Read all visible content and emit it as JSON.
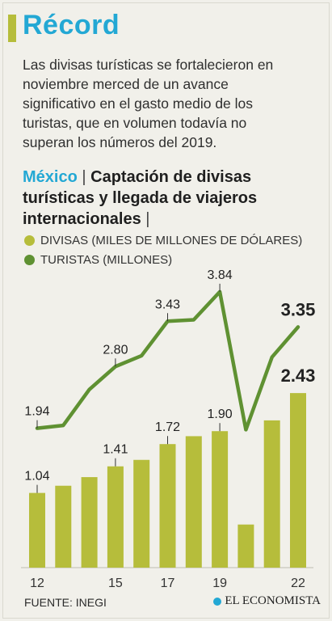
{
  "title": "Récord",
  "description": "Las divisas turísticas se fortalecieron en noviembre merced de un avance significativo en el gasto medio de los turistas, que en volumen todavía no superan los números del 2019.",
  "heading": {
    "country": "México",
    "separator": "|",
    "text": "Captación de divisas turísticas y llegada de viajeros internacionales",
    "trailing": "|"
  },
  "legend": [
    {
      "label": "DIVISAS (MILES DE MILLONES DE DÓLARES)",
      "color": "#b6bd3b"
    },
    {
      "label": "TURISTAS (MILLONES)",
      "color": "#5f9132"
    }
  ],
  "chart_data": {
    "type": "bar",
    "categories": [
      "12",
      "13",
      "14",
      "15",
      "16",
      "17",
      "18",
      "19",
      "20",
      "21",
      "22"
    ],
    "x_tick_labels": [
      "12",
      "15",
      "17",
      "19",
      "22"
    ],
    "series": [
      {
        "name": "DIVISAS (MILES DE MILLONES DE DÓLARES)",
        "mark": "bar",
        "color": "#b6bd3b",
        "values": [
          1.04,
          1.14,
          1.26,
          1.41,
          1.5,
          1.72,
          1.83,
          1.9,
          0.6,
          2.05,
          2.43
        ]
      },
      {
        "name": "TURISTAS (MILLONES)",
        "mark": "line",
        "color": "#5f9132",
        "values": [
          1.94,
          1.98,
          2.48,
          2.8,
          2.95,
          3.43,
          3.45,
          3.84,
          1.92,
          2.93,
          3.35
        ]
      }
    ],
    "data_labels": [
      {
        "series": 1,
        "index": 0,
        "text": "1.94",
        "bold": false
      },
      {
        "series": 1,
        "index": 3,
        "text": "2.80",
        "bold": false
      },
      {
        "series": 1,
        "index": 5,
        "text": "3.43",
        "bold": false
      },
      {
        "series": 1,
        "index": 7,
        "text": "3.84",
        "bold": false
      },
      {
        "series": 1,
        "index": 10,
        "text": "3.35",
        "bold": true
      },
      {
        "series": 0,
        "index": 0,
        "text": "1.04",
        "bold": false
      },
      {
        "series": 0,
        "index": 3,
        "text": "1.41",
        "bold": false
      },
      {
        "series": 0,
        "index": 5,
        "text": "1.72",
        "bold": false
      },
      {
        "series": 0,
        "index": 7,
        "text": "1.90",
        "bold": false
      },
      {
        "series": 0,
        "index": 10,
        "text": "2.43",
        "bold": true
      }
    ],
    "ylim": [
      0,
      4.3
    ],
    "grid": false
  },
  "source": "FUENTE: INEGI",
  "brand": "EL ECONOMISTA"
}
